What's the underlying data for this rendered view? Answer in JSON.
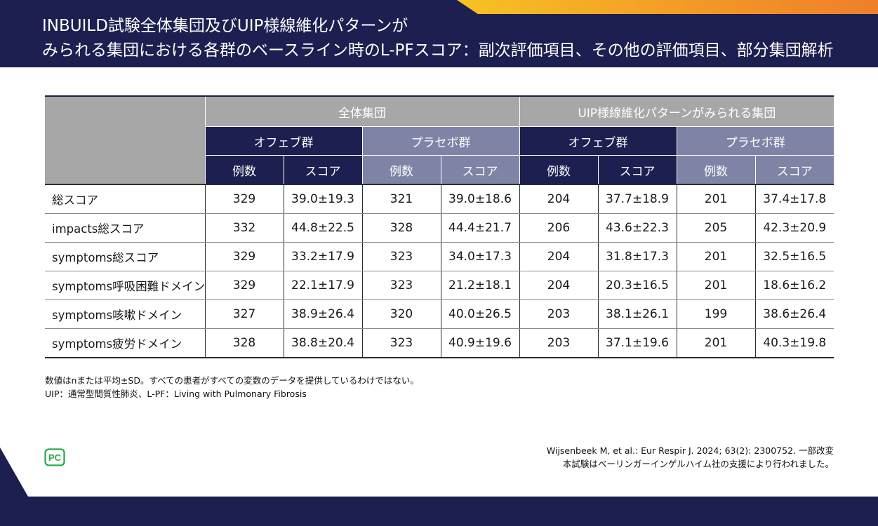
{
  "title": {
    "line1": "INBUILD試験全体集団及びUIP様線維化パターンが",
    "line2": "みられる集団における各群のベースライン時のL-PFスコア：副次評価項目、その他の評価項目、部分集団解析"
  },
  "colors": {
    "navy": "#1c1f4f",
    "accent_yellow": "#f6c324",
    "accent_orange": "#ee7f2b",
    "header_grey": "#a7a7a7",
    "placebo_lavender": "#7f84a6",
    "logo_green": "#2aa84a"
  },
  "table": {
    "groups": [
      "全体集団",
      "UIP様線維化パターンがみられる集団"
    ],
    "arms": [
      "オフェブ群",
      "プラセボ群",
      "オフェブ群",
      "プラセボ群"
    ],
    "subheaders": [
      "例数",
      "スコア",
      "例数",
      "スコア",
      "例数",
      "スコア",
      "例数",
      "スコア"
    ],
    "rows": [
      {
        "label": "総スコア",
        "values": [
          "329",
          "39.0±19.3",
          "321",
          "39.0±18.6",
          "204",
          "37.7±18.9",
          "201",
          "37.4±17.8"
        ]
      },
      {
        "label": "impacts総スコア",
        "values": [
          "332",
          "44.8±22.5",
          "328",
          "44.4±21.7",
          "206",
          "43.6±22.3",
          "205",
          "42.3±20.9"
        ]
      },
      {
        "label": "symptoms総スコア",
        "values": [
          "329",
          "33.2±17.9",
          "323",
          "34.0±17.3",
          "204",
          "31.8±17.3",
          "201",
          "32.5±16.5"
        ]
      },
      {
        "label": "symptoms呼吸困難ドメイン",
        "values": [
          "329",
          "22.1±17.9",
          "323",
          "21.2±18.1",
          "204",
          "20.3±16.5",
          "201",
          "18.6±16.2"
        ]
      },
      {
        "label": "symptoms咳嗽ドメイン",
        "values": [
          "327",
          "38.9±26.4",
          "320",
          "40.0±26.5",
          "203",
          "38.1±26.1",
          "199",
          "38.6±26.4"
        ]
      },
      {
        "label": "symptoms疲労ドメイン",
        "values": [
          "328",
          "38.8±20.4",
          "323",
          "40.9±19.6",
          "203",
          "37.1±19.6",
          "201",
          "40.3±19.8"
        ]
      }
    ]
  },
  "notes": [
    "数値はnまたは平均±SD。すべての患者がすべての変数のデータを提供しているわけではない。",
    "UIP：通常型間質性肺炎、L-PF：Living with Pulmonary Fibrosis"
  ],
  "citation": [
    "Wijsenbeek M, et al.: Eur Respir J. 2024; 63(2): 2300752. 一部改変",
    "本試験はベーリンガーインゲルハイム社の支援により行われました。"
  ],
  "logo_text": "PC"
}
